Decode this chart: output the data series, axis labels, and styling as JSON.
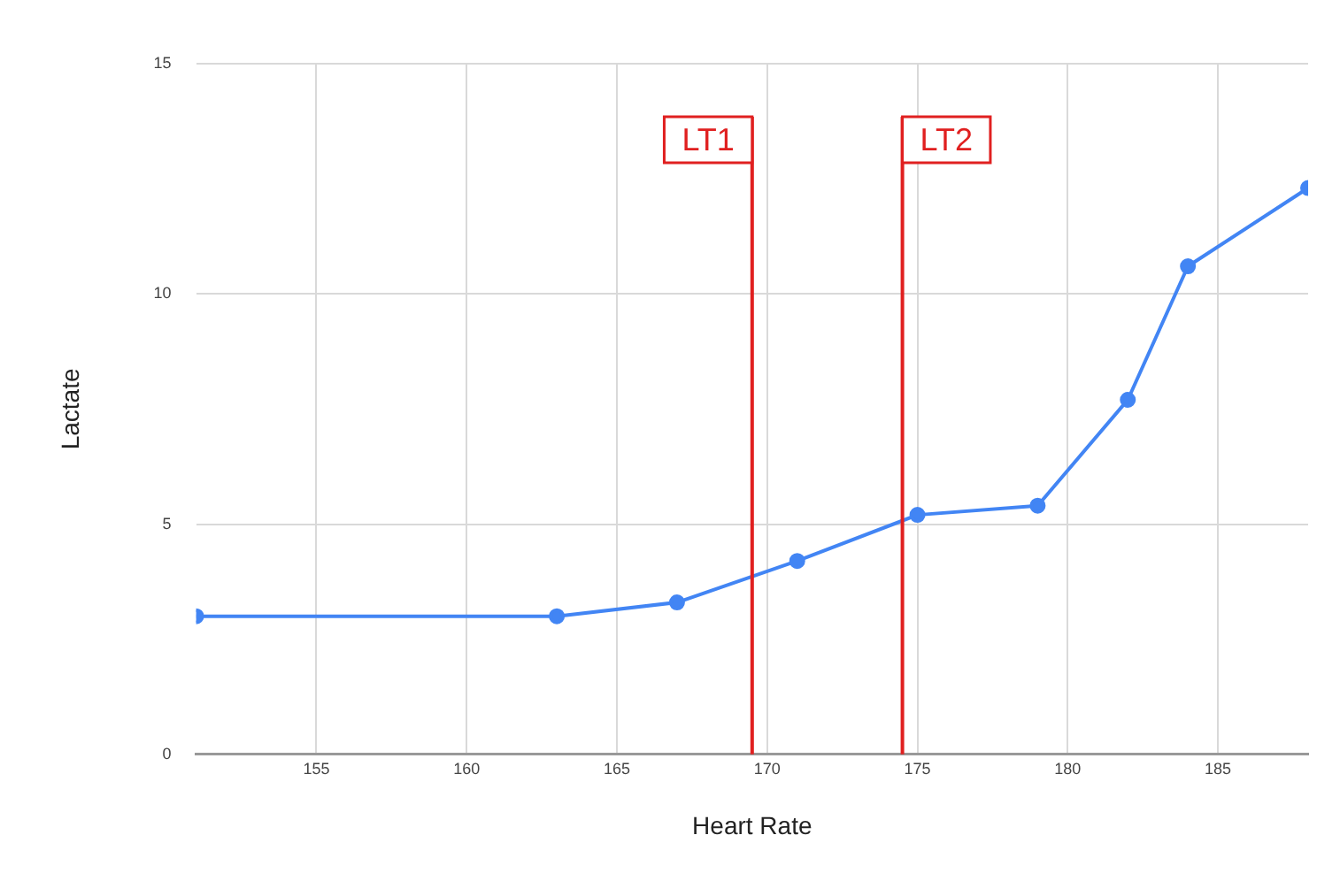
{
  "chart_data": {
    "type": "line",
    "xlabel": "Heart Rate",
    "ylabel": "Lactate",
    "x": [
      151,
      163,
      167,
      171,
      175,
      179,
      182,
      184,
      188
    ],
    "series": [
      {
        "color": "#4285f4",
        "values": [
          3.0,
          3.0,
          3.3,
          4.2,
          5.2,
          5.4,
          7.7,
          10.6,
          12.3
        ]
      }
    ],
    "xlim": [
      151,
      188
    ],
    "xticks": [
      155,
      160,
      165,
      170,
      175,
      180,
      185
    ],
    "ylim": [
      0,
      15
    ],
    "yticks": [
      0,
      5,
      10,
      15
    ],
    "ref_lines": [
      {
        "axis": "x",
        "value": 169.5,
        "label": "LT1",
        "color": "#e02020"
      },
      {
        "axis": "x",
        "value": 174.5,
        "label": "LT2",
        "color": "#e02020"
      }
    ],
    "grid": true,
    "marker": "circle",
    "line_style": "solid",
    "legend": false
  }
}
